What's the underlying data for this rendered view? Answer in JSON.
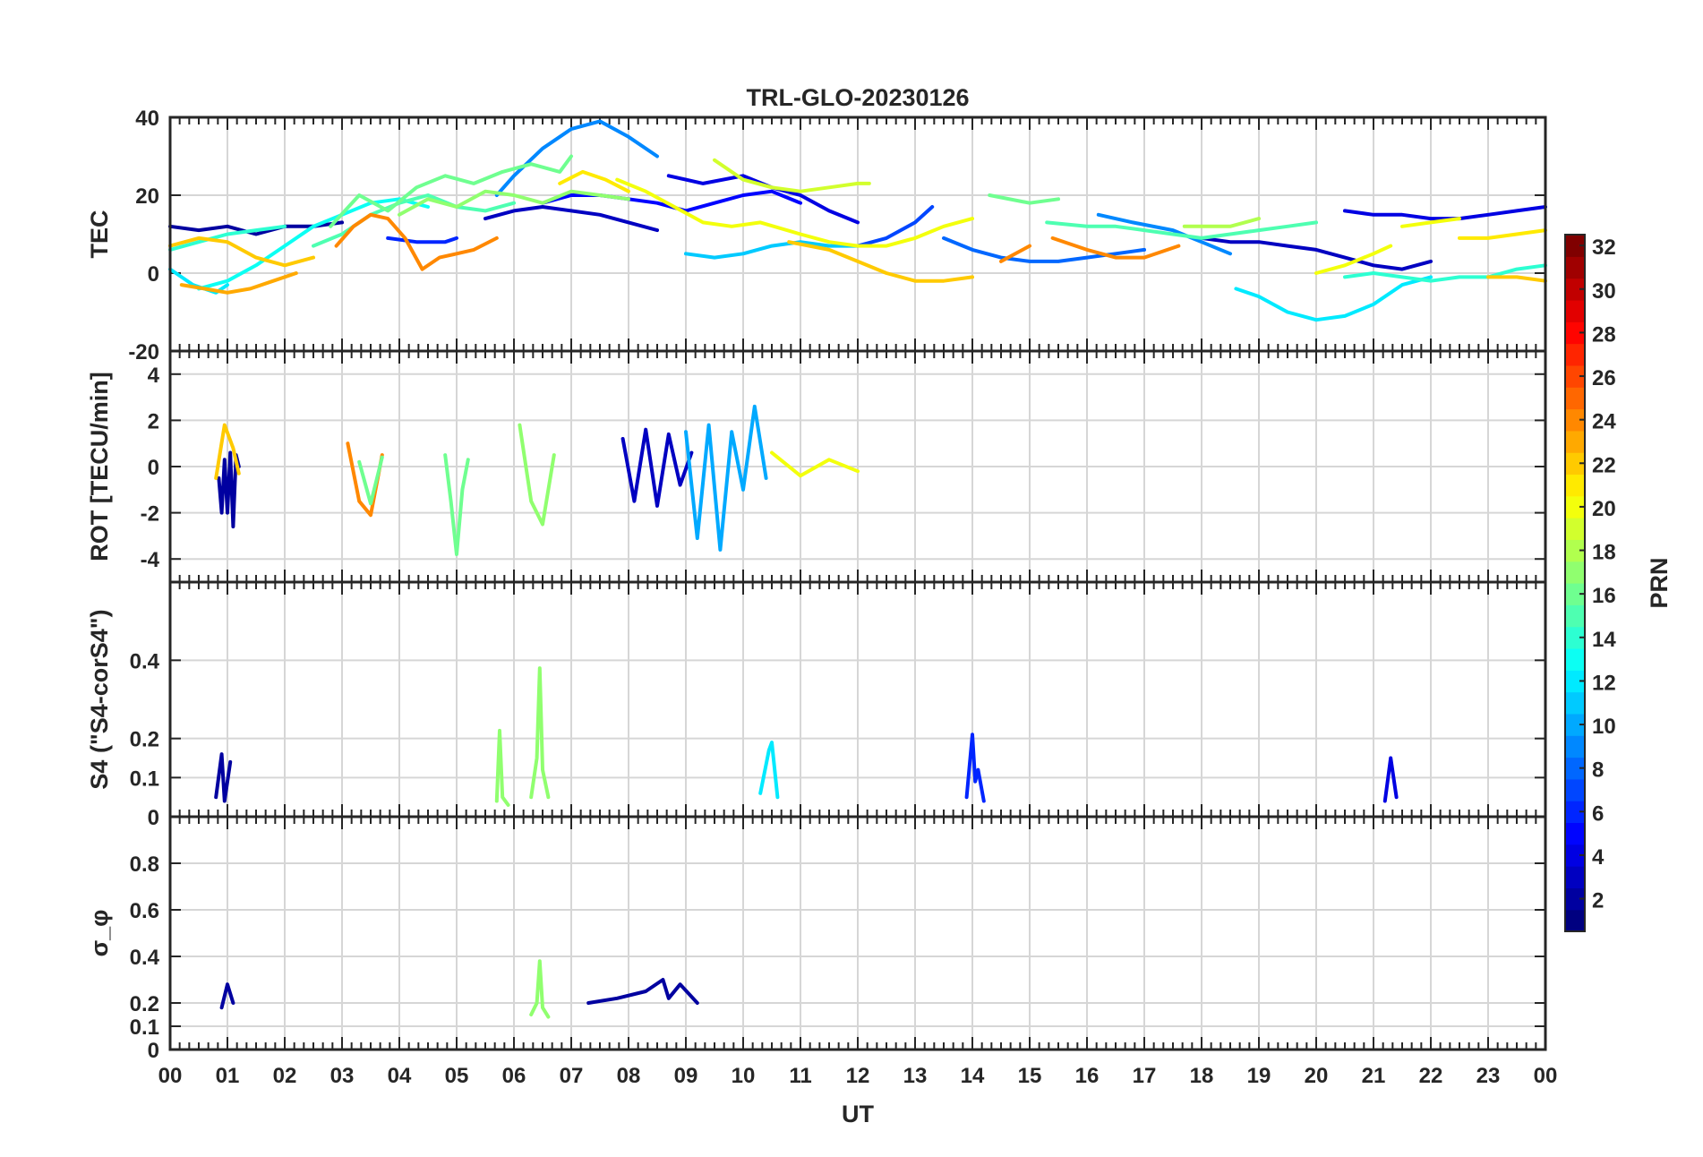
{
  "chart_data": {
    "type": "line",
    "title": "TRL-GLO-20230126",
    "xlabel": "UT",
    "x_ticks": [
      "00",
      "01",
      "02",
      "03",
      "04",
      "05",
      "06",
      "07",
      "08",
      "09",
      "10",
      "11",
      "12",
      "13",
      "14",
      "15",
      "16",
      "17",
      "18",
      "19",
      "20",
      "21",
      "22",
      "23",
      "00"
    ],
    "xlim": [
      0,
      24
    ],
    "colorbar": {
      "label": "PRN",
      "range": [
        1,
        32
      ],
      "ticks": [
        "2",
        "4",
        "6",
        "8",
        "10",
        "12",
        "14",
        "16",
        "18",
        "20",
        "22",
        "24",
        "26",
        "28",
        "30",
        "32"
      ]
    },
    "panels": [
      {
        "name": "TEC",
        "ylabel": "TEC",
        "ylim": [
          -20,
          40
        ],
        "yticks": [
          "-20",
          "0",
          "20",
          "40"
        ],
        "series": [
          {
            "prn": 2,
            "x": [
              0,
              0.5,
              1,
              1.5,
              2,
              2.5,
              3
            ],
            "y": [
              12,
              11,
              12,
              10,
              12,
              12,
              13
            ]
          },
          {
            "prn": 3,
            "x": [
              5.5,
              6,
              6.5,
              7,
              7.5,
              8,
              8.5
            ],
            "y": [
              14,
              16,
              17,
              16,
              15,
              13,
              11
            ]
          },
          {
            "prn": 4,
            "x": [
              8.7,
              9.3,
              10,
              10.5,
              11,
              11.5,
              12
            ],
            "y": [
              25,
              23,
              25,
              22,
              20,
              16,
              13
            ]
          },
          {
            "prn": 5,
            "x": [
              6.5,
              7,
              7.5,
              8,
              8.5,
              9,
              9.5,
              10,
              10.5,
              11
            ],
            "y": [
              18,
              20,
              20,
              19,
              18,
              16,
              18,
              20,
              21,
              18
            ]
          },
          {
            "prn": 3,
            "x": [
              18,
              18.5,
              19,
              19.5,
              20,
              20.5,
              21,
              21.5,
              22
            ],
            "y": [
              9,
              8,
              8,
              7,
              6,
              4,
              2,
              1,
              3
            ]
          },
          {
            "prn": 4,
            "x": [
              20.5,
              21,
              21.5,
              22,
              22.5,
              23,
              23.5,
              24
            ],
            "y": [
              16,
              15,
              15,
              14,
              14,
              15,
              16,
              17
            ]
          },
          {
            "prn": 6,
            "x": [
              3.8,
              4.3,
              4.8,
              5
            ],
            "y": [
              9,
              8,
              8,
              9
            ]
          },
          {
            "prn": 7,
            "x": [
              12,
              12.5,
              13,
              13.3
            ],
            "y": [
              7,
              9,
              13,
              17
            ]
          },
          {
            "prn": 8,
            "x": [
              13.5,
              14,
              14.5,
              15,
              15.5,
              16,
              16.5,
              17
            ],
            "y": [
              9,
              6,
              4,
              3,
              3,
              4,
              5,
              6
            ]
          },
          {
            "prn": 9,
            "x": [
              16.2,
              16.8,
              17.5,
              18,
              18.5
            ],
            "y": [
              15,
              13,
              11,
              8,
              5
            ]
          },
          {
            "prn": 9,
            "x": [
              5.7,
              6,
              6.5,
              7,
              7.5,
              8,
              8.5
            ],
            "y": [
              20,
              25,
              32,
              37,
              39,
              35,
              30
            ]
          },
          {
            "prn": 11,
            "x": [
              9,
              9.5,
              10,
              10.5,
              11,
              11.5,
              12
            ],
            "y": [
              5,
              4,
              5,
              7,
              8,
              7,
              7
            ]
          },
          {
            "prn": 12,
            "x": [
              18.6,
              19,
              19.5,
              20,
              20.5,
              21,
              21.5,
              22
            ],
            "y": [
              -4,
              -6,
              -10,
              -12,
              -11,
              -8,
              -3,
              -1
            ]
          },
          {
            "prn": 12,
            "x": [
              0,
              0.4,
              0.8,
              1
            ],
            "y": [
              1,
              -3,
              -5,
              -3
            ]
          },
          {
            "prn": 13,
            "x": [
              0.5,
              1,
              1.5,
              2,
              2.5,
              3,
              3.5,
              4,
              4.5
            ],
            "y": [
              -4,
              -2,
              2,
              7,
              12,
              15,
              18,
              19,
              17
            ]
          },
          {
            "prn": 14,
            "x": [
              0,
              0.5,
              1,
              1.5,
              2
            ],
            "y": [
              6,
              8,
              10,
              11,
              12
            ]
          },
          {
            "prn": 14,
            "x": [
              20.5,
              21,
              21.5,
              22,
              22.5,
              23,
              23.5,
              24
            ],
            "y": [
              -1,
              0,
              -1,
              -2,
              -1,
              -1,
              1,
              2
            ]
          },
          {
            "prn": 15,
            "x": [
              2.5,
              3,
              3.5,
              4,
              4.5,
              5,
              5.5,
              6
            ],
            "y": [
              7,
              10,
              15,
              18,
              20,
              17,
              16,
              18
            ]
          },
          {
            "prn": 15,
            "x": [
              15.3,
              16,
              16.5,
              17,
              17.5,
              18,
              18.5,
              19,
              19.5,
              20
            ],
            "y": [
              13,
              12,
              12,
              11,
              10,
              9,
              10,
              11,
              12,
              13
            ]
          },
          {
            "prn": 16,
            "x": [
              2.8,
              3.3,
              3.8,
              4.3,
              4.8,
              5.3,
              5.8,
              6.3,
              6.8,
              7
            ],
            "y": [
              12,
              20,
              16,
              22,
              25,
              23,
              26,
              28,
              26,
              30
            ]
          },
          {
            "prn": 16,
            "x": [
              14.3,
              15,
              15.5
            ],
            "y": [
              20,
              18,
              19
            ]
          },
          {
            "prn": 17,
            "x": [
              4,
              4.5,
              5,
              5.5,
              6,
              6.5,
              7,
              7.5,
              8
            ],
            "y": [
              15,
              19,
              17,
              21,
              20,
              18,
              21,
              20,
              19
            ]
          },
          {
            "prn": 18,
            "x": [
              17.7,
              18.5,
              19
            ],
            "y": [
              12,
              12,
              14
            ]
          },
          {
            "prn": 19,
            "x": [
              9.5,
              10,
              10.5,
              11,
              11.5,
              12,
              12.2
            ],
            "y": [
              29,
              24,
              22,
              21,
              22,
              23,
              23
            ]
          },
          {
            "prn": 20,
            "x": [
              7.8,
              8.3,
              8.8,
              9.3,
              9.8,
              10.3,
              11,
              11.5,
              12,
              12.5,
              13,
              13.5,
              14
            ],
            "y": [
              24,
              21,
              17,
              13,
              12,
              13,
              10,
              8,
              7,
              7,
              9,
              12,
              14
            ]
          },
          {
            "prn": 20,
            "x": [
              20,
              20.5,
              21,
              21.3
            ],
            "y": [
              0,
              2,
              5,
              7
            ]
          },
          {
            "prn": 20,
            "x": [
              21.5,
              22,
              22.5
            ],
            "y": [
              12,
              13,
              14
            ]
          },
          {
            "prn": 21,
            "x": [
              6.8,
              7.2,
              7.6,
              8
            ],
            "y": [
              23,
              26,
              24,
              21
            ]
          },
          {
            "prn": 21,
            "x": [
              22.5,
              23,
              23.5,
              24
            ],
            "y": [
              9,
              9,
              10,
              11
            ]
          },
          {
            "prn": 22,
            "x": [
              0,
              0.5,
              1,
              1.5,
              2,
              2.5
            ],
            "y": [
              7,
              9,
              8,
              4,
              2,
              4
            ]
          },
          {
            "prn": 22,
            "x": [
              10.8,
              11.5,
              12,
              12.5,
              13,
              13.5,
              14
            ],
            "y": [
              8,
              6,
              3,
              0,
              -2,
              -2,
              -1
            ]
          },
          {
            "prn": 22,
            "x": [
              23,
              23.5,
              24
            ],
            "y": [
              -1,
              -1,
              -2
            ]
          },
          {
            "prn": 23,
            "x": [
              0.2,
              0.6,
              1,
              1.4,
              1.8,
              2.2
            ],
            "y": [
              -3,
              -4,
              -5,
              -4,
              -2,
              0
            ]
          },
          {
            "prn": 24,
            "x": [
              2.9,
              3.2,
              3.5,
              3.8,
              4.1,
              4.4,
              4.7,
              5,
              5.3,
              5.7
            ],
            "y": [
              7,
              12,
              15,
              14,
              9,
              1,
              4,
              5,
              6,
              9
            ]
          },
          {
            "prn": 24,
            "x": [
              14.5,
              15
            ],
            "y": [
              3,
              7
            ]
          },
          {
            "prn": 24,
            "x": [
              15.4,
              16,
              16.5,
              17,
              17.6
            ],
            "y": [
              9,
              6,
              4,
              4,
              7
            ]
          }
        ]
      },
      {
        "name": "ROT",
        "ylabel": "ROT [TECU/min]",
        "ylim": [
          -5,
          5
        ],
        "yticks": [
          "-4",
          "-2",
          "0",
          "2",
          "4"
        ],
        "series": [
          {
            "prn": 2,
            "x": [
              0.85,
              0.9,
              0.95,
              1,
              1.05,
              1.1,
              1.15,
              1.2
            ],
            "y": [
              -0.5,
              -2,
              0.3,
              -2,
              0.6,
              -2.6,
              0.5,
              0
            ]
          },
          {
            "prn": 3,
            "x": [
              7.9,
              8.1,
              8.3,
              8.5,
              8.7,
              8.9,
              9.1
            ],
            "y": [
              1.2,
              -1.5,
              1.6,
              -1.7,
              1.4,
              -0.8,
              0.6
            ]
          },
          {
            "prn": 10,
            "x": [
              9,
              9.2,
              9.4,
              9.6,
              9.8,
              10,
              10.2,
              10.4
            ],
            "y": [
              1.5,
              -3.1,
              1.8,
              -3.6,
              1.5,
              -1,
              2.6,
              -0.5
            ]
          },
          {
            "prn": 16,
            "x": [
              4.8,
              4.9,
              5,
              5.1,
              5.2
            ],
            "y": [
              0.5,
              -1.5,
              -3.8,
              -1,
              0.3
            ]
          },
          {
            "prn": 17,
            "x": [
              6.1,
              6.3,
              6.5,
              6.7
            ],
            "y": [
              1.8,
              -1.5,
              -2.5,
              0.5
            ]
          },
          {
            "prn": 22,
            "x": [
              0.8,
              0.95,
              1.1,
              1.2
            ],
            "y": [
              -0.5,
              1.8,
              0.8,
              -0.3
            ]
          },
          {
            "prn": 24,
            "x": [
              3.1,
              3.3,
              3.5,
              3.7
            ],
            "y": [
              1,
              -1.5,
              -2.1,
              0.5
            ]
          },
          {
            "prn": 16,
            "x": [
              3.3,
              3.5,
              3.7
            ],
            "y": [
              0.2,
              -1.6,
              0.4
            ]
          },
          {
            "prn": 20,
            "x": [
              10.5,
              11,
              11.5,
              12
            ],
            "y": [
              0.6,
              -0.4,
              0.3,
              -0.2
            ]
          }
        ]
      },
      {
        "name": "S4",
        "ylabel": "S4 (\"S4-corS4\")",
        "ylim": [
          0,
          0.6
        ],
        "yticks": [
          "0",
          "0.1",
          "0.2",
          "0.4"
        ],
        "series": [
          {
            "prn": 17,
            "x": [
              6.3,
              6.4,
              6.45,
              6.5,
              6.6
            ],
            "y": [
              0.05,
              0.15,
              0.38,
              0.12,
              0.05
            ]
          },
          {
            "prn": 17,
            "x": [
              5.7,
              5.75,
              5.8,
              5.9
            ],
            "y": [
              0.04,
              0.22,
              0.05,
              0.03
            ]
          },
          {
            "prn": 6,
            "x": [
              13.9,
              14,
              14.05,
              14.1,
              14.2
            ],
            "y": [
              0.05,
              0.21,
              0.09,
              0.12,
              0.04
            ]
          },
          {
            "prn": 2,
            "x": [
              0.8,
              0.9,
              0.95,
              1.05
            ],
            "y": [
              0.05,
              0.16,
              0.04,
              0.14
            ]
          },
          {
            "prn": 12,
            "x": [
              10.3,
              10.45,
              10.5,
              10.6
            ],
            "y": [
              0.06,
              0.17,
              0.19,
              0.05
            ]
          },
          {
            "prn": 4,
            "x": [
              21.2,
              21.3,
              21.4
            ],
            "y": [
              0.04,
              0.15,
              0.05
            ]
          }
        ]
      },
      {
        "name": "sigma_phi",
        "ylabel": "σ_φ",
        "ylim": [
          0,
          1
        ],
        "yticks": [
          "0",
          "0.1",
          "0.2",
          "0.4",
          "0.6",
          "0.8"
        ],
        "series": [
          {
            "prn": 17,
            "x": [
              6.3,
              6.4,
              6.45,
              6.5,
              6.6
            ],
            "y": [
              0.15,
              0.2,
              0.38,
              0.18,
              0.14
            ]
          },
          {
            "prn": 2,
            "x": [
              7.3,
              7.8,
              8.3,
              8.6,
              8.7,
              8.9,
              9.2
            ],
            "y": [
              0.2,
              0.22,
              0.25,
              0.3,
              0.22,
              0.28,
              0.2
            ]
          },
          {
            "prn": 2,
            "x": [
              0.9,
              1,
              1.1
            ],
            "y": [
              0.18,
              0.28,
              0.2
            ]
          }
        ]
      }
    ]
  }
}
